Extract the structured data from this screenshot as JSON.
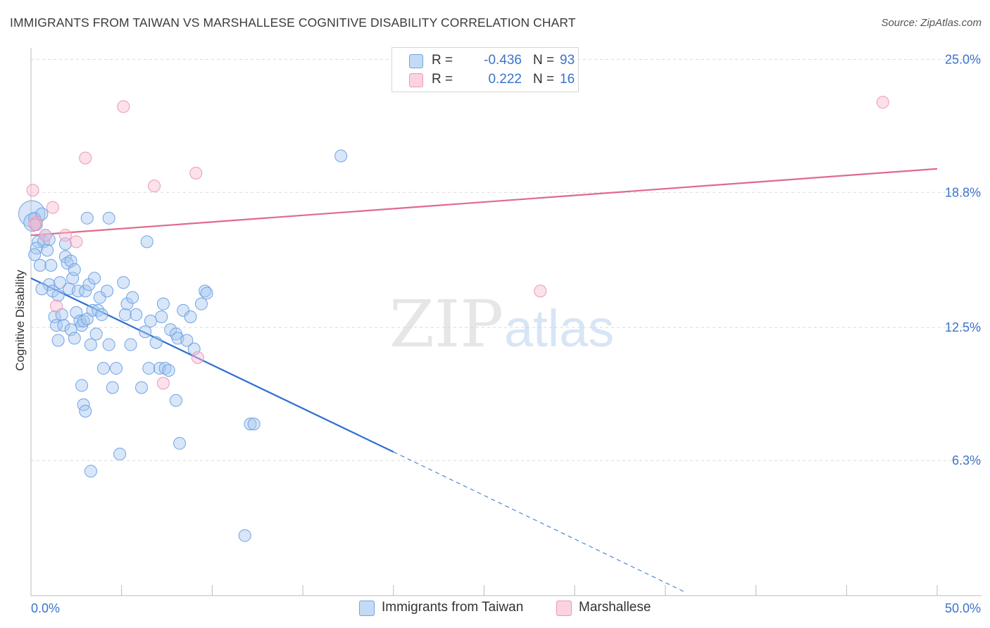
{
  "title": "IMMIGRANTS FROM TAIWAN VS MARSHALLESE COGNITIVE DISABILITY CORRELATION CHART",
  "source": "Source: ZipAtlas.com",
  "watermark": {
    "zip": "ZIP",
    "atlas": "atlas"
  },
  "stats": [
    {
      "r_label": "R =",
      "r_value": "-0.436",
      "n_label": "N =",
      "n_value": "93",
      "color": "#a9c8f0"
    },
    {
      "r_label": "R =",
      "r_value": "0.222",
      "n_label": "N =",
      "n_value": "16",
      "color": "#f6bcd0"
    }
  ],
  "legend": [
    {
      "label": "Immigrants from Taiwan",
      "color": "#a9c8f0"
    },
    {
      "label": "Marshallese",
      "color": "#f6bcd0"
    }
  ],
  "chart_data": {
    "type": "scatter",
    "title": "IMMIGRANTS FROM TAIWAN VS MARSHALLESE COGNITIVE DISABILITY CORRELATION CHART",
    "xlabel": "",
    "ylabel": "Cognitive Disability",
    "xlim": [
      0,
      50
    ],
    "ylim": [
      0,
      25.8
    ],
    "x_tick_labels": [
      {
        "value": 0,
        "label": "0.0%"
      },
      {
        "value": 50,
        "label": "50.0%"
      }
    ],
    "y_tick_labels": [
      {
        "value": 6.3,
        "label": "6.3%"
      },
      {
        "value": 12.5,
        "label": "12.5%"
      },
      {
        "value": 18.8,
        "label": "18.8%"
      },
      {
        "value": 25.0,
        "label": "25.0%"
      }
    ],
    "grid": "horizontal dashed",
    "series": [
      {
        "name": "Immigrants from Taiwan",
        "color": "#6fa3e6",
        "trend": {
          "x0": 0,
          "y0": 14.8,
          "x1": 20,
          "y1": 6.7,
          "dashed_to_x": 36,
          "dashed_to_y": 0.2
        },
        "points": [
          [
            0.05,
            17.8,
            2.2
          ],
          [
            0.1,
            17.4,
            1.5
          ],
          [
            0.2,
            17.6,
            1
          ],
          [
            0.3,
            17.3,
            1
          ],
          [
            0.4,
            16.5,
            1
          ],
          [
            0.5,
            15.4,
            1
          ],
          [
            0.6,
            17.8,
            1
          ],
          [
            0.7,
            16.5,
            1
          ],
          [
            0.8,
            16.8,
            1
          ],
          [
            0.9,
            16.1,
            1
          ],
          [
            1.0,
            16.6,
            1
          ],
          [
            1.1,
            15.4,
            1
          ],
          [
            1.0,
            14.5,
            1
          ],
          [
            1.2,
            14.2,
            1
          ],
          [
            1.3,
            13.0,
            1
          ],
          [
            1.4,
            12.6,
            1
          ],
          [
            1.5,
            14.0,
            1
          ],
          [
            1.6,
            14.6,
            1
          ],
          [
            1.7,
            13.1,
            1
          ],
          [
            1.8,
            12.6,
            1
          ],
          [
            1.9,
            15.8,
            1
          ],
          [
            2.0,
            15.5,
            1
          ],
          [
            2.1,
            14.3,
            1
          ],
          [
            2.2,
            15.6,
            1
          ],
          [
            2.3,
            14.8,
            1
          ],
          [
            2.4,
            15.2,
            1
          ],
          [
            2.5,
            13.2,
            1
          ],
          [
            2.6,
            14.2,
            1
          ],
          [
            2.7,
            12.8,
            1
          ],
          [
            2.8,
            12.6,
            1
          ],
          [
            2.9,
            12.8,
            1
          ],
          [
            3.0,
            14.2,
            1
          ],
          [
            3.1,
            12.9,
            1
          ],
          [
            3.2,
            14.5,
            1
          ],
          [
            3.3,
            11.7,
            1
          ],
          [
            3.4,
            13.3,
            1
          ],
          [
            3.5,
            14.8,
            1
          ],
          [
            3.6,
            12.2,
            1
          ],
          [
            3.7,
            13.3,
            1
          ],
          [
            3.8,
            13.9,
            1
          ],
          [
            3.9,
            13.1,
            1
          ],
          [
            4.0,
            10.6,
            1
          ],
          [
            4.2,
            14.2,
            1
          ],
          [
            4.3,
            11.7,
            1
          ],
          [
            4.5,
            9.7,
            1
          ],
          [
            4.7,
            10.6,
            1
          ],
          [
            4.9,
            6.6,
            1
          ],
          [
            5.1,
            14.6,
            1
          ],
          [
            5.2,
            13.1,
            1
          ],
          [
            5.3,
            13.6,
            1
          ],
          [
            5.5,
            11.7,
            1
          ],
          [
            5.6,
            13.9,
            1
          ],
          [
            5.8,
            13.1,
            1
          ],
          [
            6.1,
            9.7,
            1
          ],
          [
            6.3,
            12.3,
            1
          ],
          [
            6.6,
            12.8,
            1
          ],
          [
            6.9,
            11.8,
            1
          ],
          [
            7.1,
            10.6,
            1
          ],
          [
            7.2,
            13.0,
            1
          ],
          [
            7.3,
            13.6,
            1
          ],
          [
            7.4,
            10.6,
            1
          ],
          [
            7.6,
            10.5,
            1
          ],
          [
            7.7,
            12.4,
            1
          ],
          [
            8.0,
            12.2,
            1
          ],
          [
            8.1,
            12.0,
            1
          ],
          [
            8.4,
            13.3,
            1
          ],
          [
            8.6,
            11.9,
            1
          ],
          [
            8.8,
            13.0,
            1
          ],
          [
            9.0,
            11.5,
            1
          ],
          [
            9.4,
            13.6,
            1
          ],
          [
            9.6,
            14.2,
            1
          ],
          [
            9.7,
            14.1,
            1
          ],
          [
            12.1,
            8.0,
            1
          ],
          [
            12.3,
            8.0,
            1
          ],
          [
            11.8,
            2.8,
            1
          ],
          [
            2.8,
            9.8,
            1
          ],
          [
            2.9,
            8.9,
            1
          ],
          [
            3.0,
            8.6,
            1
          ],
          [
            3.3,
            5.8,
            1
          ],
          [
            4.3,
            17.6,
            1
          ],
          [
            3.1,
            17.6,
            1
          ],
          [
            6.4,
            16.5,
            1
          ],
          [
            6.5,
            10.6,
            1
          ],
          [
            8.0,
            9.1,
            1
          ],
          [
            8.2,
            7.1,
            1
          ],
          [
            17.1,
            20.5,
            1
          ],
          [
            1.5,
            11.9,
            1
          ],
          [
            2.2,
            12.4,
            1
          ],
          [
            0.6,
            14.3,
            1
          ],
          [
            1.9,
            16.4,
            1
          ],
          [
            0.3,
            16.2,
            1
          ],
          [
            0.2,
            15.9,
            1
          ],
          [
            2.4,
            12.0,
            1
          ]
        ]
      },
      {
        "name": "Marshallese",
        "color": "#f097b6",
        "trend": {
          "x0": 0,
          "y0": 16.8,
          "x1": 50,
          "y1": 19.9
        },
        "points": [
          [
            0.1,
            18.9,
            1
          ],
          [
            0.3,
            17.4,
            1
          ],
          [
            0.8,
            16.8,
            1
          ],
          [
            1.2,
            18.1,
            1
          ],
          [
            1.4,
            13.5,
            1
          ],
          [
            1.9,
            16.8,
            1
          ],
          [
            2.5,
            16.5,
            1
          ],
          [
            3.0,
            20.4,
            1
          ],
          [
            5.1,
            22.8,
            1
          ],
          [
            6.8,
            19.1,
            1
          ],
          [
            7.3,
            9.9,
            1
          ],
          [
            9.1,
            19.7,
            1
          ],
          [
            9.2,
            11.1,
            1
          ],
          [
            28.1,
            14.2,
            1
          ],
          [
            47.0,
            23.0,
            1
          ],
          [
            0.2,
            17.3,
            1
          ]
        ]
      }
    ]
  }
}
